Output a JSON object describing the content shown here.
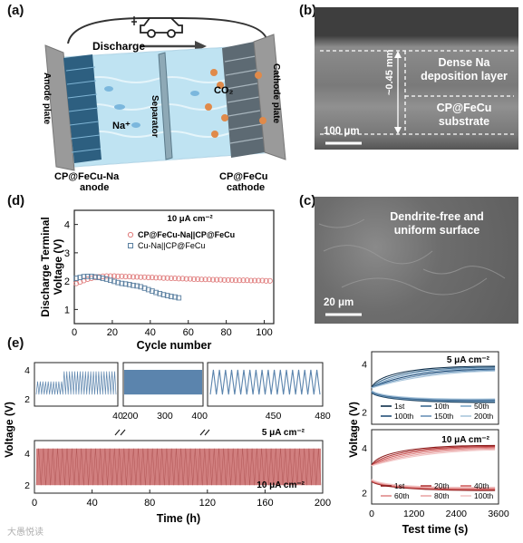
{
  "panel_labels": {
    "a": "(a)",
    "b": "(b)",
    "c": "(c)",
    "d": "(d)",
    "e": "(e)"
  },
  "panel_a": {
    "discharge": "Discharge",
    "anode_plate": "Anode plate",
    "separator": "Separator",
    "cathode_plate": "Cathode plate",
    "na_ion": "Na⁺",
    "co2": "CO₂",
    "anode_label_1": "CP@FeCu-Na",
    "anode_label_2": "anode",
    "cathode_label_1": "CP@FeCu",
    "cathode_label_2": "cathode",
    "colors": {
      "plate": "#9a9a9a",
      "electrolyte": "#bfe3f2",
      "anode_rod": "#2d5f80",
      "co2_ball": "#e08a4a"
    }
  },
  "panel_b": {
    "thickness": "~0.45 mm",
    "layer_1": "Dense Na deposition layer",
    "layer_2": "CP@FeCu substrate",
    "scale_bar": "100 μm"
  },
  "panel_c": {
    "text_1": "Dendrite-free and",
    "text_2": "uniform surface",
    "scale_bar": "20 μm"
  },
  "panel_d": {
    "chart_data": {
      "type": "scatter",
      "annotation": "10 μA cm⁻²",
      "xlabel": "Cycle number",
      "ylabel": "Discharge Terminal Voltage (V)",
      "xlim": [
        0,
        105
      ],
      "ylim": [
        0.5,
        4.5
      ],
      "xticks": [
        0,
        20,
        40,
        60,
        80,
        100
      ],
      "yticks": [
        1,
        2,
        3,
        4
      ],
      "series": [
        {
          "name": "CP@FeCu-Na||CP@FeCu",
          "color": "#e07d7d",
          "x": [
            1,
            3,
            5,
            7,
            9,
            11,
            13,
            15,
            17,
            19,
            21,
            23,
            25,
            27,
            29,
            31,
            33,
            35,
            37,
            39,
            41,
            43,
            45,
            47,
            49,
            51,
            53,
            55,
            57,
            59,
            61,
            63,
            65,
            67,
            69,
            71,
            73,
            75,
            77,
            79,
            81,
            83,
            85,
            87,
            89,
            91,
            93,
            95,
            97,
            99,
            101,
            103
          ],
          "y": [
            1.92,
            1.97,
            2.02,
            2.07,
            2.1,
            2.13,
            2.15,
            2.17,
            2.18,
            2.18,
            2.18,
            2.17,
            2.17,
            2.16,
            2.16,
            2.15,
            2.15,
            2.14,
            2.14,
            2.13,
            2.13,
            2.12,
            2.12,
            2.11,
            2.11,
            2.1,
            2.1,
            2.09,
            2.09,
            2.08,
            2.08,
            2.07,
            2.07,
            2.06,
            2.06,
            2.06,
            2.05,
            2.05,
            2.05,
            2.04,
            2.04,
            2.04,
            2.03,
            2.03,
            2.03,
            2.03,
            2.02,
            2.02,
            2.02,
            2.02,
            2.01,
            2.01
          ]
        },
        {
          "name": "Cu-Na||CP@FeCu",
          "color": "#5a7fa0",
          "x": [
            1,
            3,
            5,
            7,
            9,
            11,
            13,
            15,
            17,
            19,
            21,
            23,
            25,
            27,
            29,
            31,
            33,
            35,
            37,
            39,
            41,
            43,
            45,
            47,
            49,
            51,
            53,
            55
          ],
          "y": [
            2.1,
            2.13,
            2.16,
            2.17,
            2.17,
            2.15,
            2.13,
            2.1,
            2.07,
            2.03,
            1.99,
            1.95,
            1.92,
            1.9,
            1.88,
            1.85,
            1.83,
            1.8,
            1.75,
            1.7,
            1.65,
            1.6,
            1.56,
            1.52,
            1.49,
            1.46,
            1.44,
            1.41
          ]
        }
      ]
    }
  },
  "panel_e": {
    "chart_data": [
      {
        "type": "line",
        "title": "top-left-strip",
        "annotation": "5 μA cm⁻²",
        "xlabel": "",
        "ylabel": "Voltage (V)",
        "segments": [
          {
            "xlim": [
              0,
              40
            ],
            "xticks": [
              40
            ]
          },
          {
            "xlim": [
              180,
              410
            ],
            "xticks": [
              200,
              300,
              400
            ]
          },
          {
            "xlim": [
              410,
              480
            ],
            "xticks": [
              450,
              480
            ]
          }
        ],
        "yticks": [
          2,
          4
        ],
        "ylim": [
          1.5,
          4.5
        ],
        "series": [
          {
            "color": "#5b84ad",
            "low": 2.3,
            "high": 4.0
          }
        ]
      },
      {
        "type": "line",
        "annotation": "10 μA cm⁻²",
        "xlabel": "Time (h)",
        "ylabel": "Voltage (V)",
        "xlim": [
          0,
          200
        ],
        "xticks": [
          0,
          40,
          80,
          120,
          160,
          200
        ],
        "yticks": [
          2,
          4
        ],
        "ylim": [
          1.5,
          4.8
        ],
        "series": [
          {
            "color": "#c96868",
            "low": 2.0,
            "high": 4.3
          }
        ]
      },
      {
        "type": "line",
        "annotation": "5 μA cm⁻²",
        "xlabel": "",
        "ylabel": "Voltage (V)",
        "xlim": [
          0,
          3600
        ],
        "yticks": [
          2,
          4
        ],
        "ylim": [
          1.5,
          4.5
        ],
        "legend": [
          "1st",
          "10th",
          "50th",
          "100th",
          "150th",
          "200th"
        ],
        "colors": [
          "#0d2e4a",
          "#3d6b8f",
          "#7ea6c7",
          "#25507a",
          "#6a93b8",
          "#aac6dc"
        ]
      },
      {
        "type": "line",
        "annotation": "10 μA cm⁻²",
        "xlabel": "Test time (s)",
        "ylabel": "Voltage (V)",
        "xlim": [
          0,
          3600
        ],
        "xticks": [
          0,
          1200,
          2400,
          3600
        ],
        "yticks": [
          2,
          4
        ],
        "ylim": [
          1.5,
          4.8
        ],
        "legend": [
          "1st",
          "20th",
          "40th",
          "60th",
          "80th",
          "100th"
        ],
        "colors": [
          "#8b1a1a",
          "#b23a3a",
          "#d06060",
          "#e08a8a",
          "#eaa7a7",
          "#f2c6c6"
        ]
      }
    ]
  },
  "watermark": "大愚悦读"
}
